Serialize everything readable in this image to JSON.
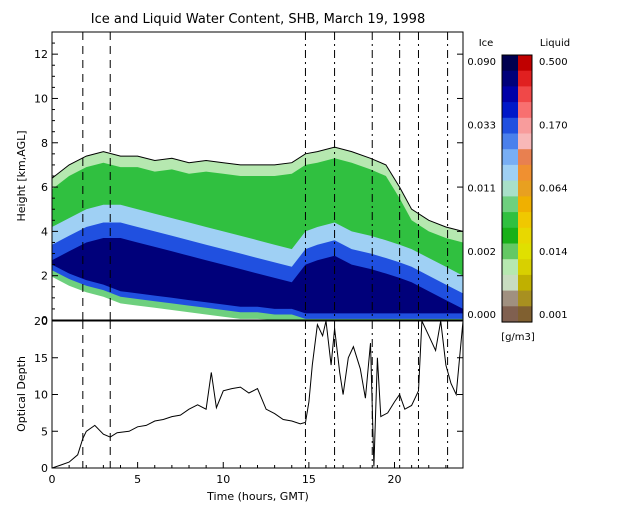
{
  "chart_data": [
    {
      "type": "heatmap",
      "title": "Ice and Liquid Water Content, SHB, March 19, 1998",
      "ylabel": "Height [km,AGL]",
      "xlabel": "",
      "ylim": [
        0,
        13
      ],
      "xlim": [
        0,
        24
      ],
      "y_ticks": [
        "0",
        "2",
        "4",
        "6",
        "8",
        "10",
        "12"
      ],
      "dashed_times": [
        1.8,
        3.4
      ],
      "dashdot_times": [
        14.8,
        16.5,
        18.7,
        20.3,
        21.4,
        23.1
      ],
      "profiles": {
        "times": [
          0,
          1,
          2,
          3,
          4,
          5,
          6,
          7,
          8,
          9,
          10,
          11,
          12,
          13,
          14,
          14.8,
          15.5,
          16.5,
          17.5,
          18.6,
          19.5,
          20.3,
          21,
          22,
          23,
          24
        ],
        "cloud_top_km": [
          6.4,
          7.0,
          7.4,
          7.6,
          7.4,
          7.4,
          7.2,
          7.3,
          7.1,
          7.2,
          7.1,
          7.0,
          7.0,
          7.0,
          7.1,
          7.5,
          7.6,
          7.8,
          7.6,
          7.3,
          7.0,
          6.0,
          5.0,
          4.5,
          4.2,
          4.0
        ],
        "cloud_base_km": [
          2.2,
          1.8,
          1.5,
          1.3,
          1.0,
          0.9,
          0.8,
          0.7,
          0.6,
          0.5,
          0.4,
          0.3,
          0.3,
          0.2,
          0.2,
          0.0,
          0.0,
          0.0,
          0.0,
          0.0,
          0.0,
          0.0,
          0.0,
          0.0,
          0.0,
          0.0
        ],
        "dense_top_km": [
          3.0,
          3.4,
          3.8,
          4.0,
          4.0,
          3.8,
          3.6,
          3.4,
          3.2,
          3.0,
          2.8,
          2.6,
          2.4,
          2.2,
          2.0,
          2.8,
          3.0,
          3.2,
          2.8,
          2.6,
          2.4,
          2.2,
          2.0,
          1.6,
          1.2,
          0.8
        ]
      },
      "colorbar": {
        "ice_label": "Ice",
        "liquid_label": "Liquid",
        "ice_ticks": [
          "0.090",
          "0.033",
          "0.011",
          "0.002",
          "0.000"
        ],
        "liquid_ticks": [
          "0.500",
          "0.170",
          "0.064",
          "0.014",
          "0.001"
        ],
        "units": "[g/m3]",
        "ice_colors": [
          "#000050",
          "#00007a",
          "#0000a8",
          "#0018c8",
          "#2050e0",
          "#4a80ec",
          "#78aef4",
          "#9fd0f4",
          "#a8e0c8",
          "#6ed07e",
          "#30c040",
          "#18b018",
          "#64c864",
          "#b6e8b0",
          "#c8dcc0",
          "#a09080",
          "#806050"
        ],
        "liquid_colors": [
          "#c00000",
          "#e02020",
          "#f04848",
          "#f87070",
          "#f89c9c",
          "#f8b8b8",
          "#e88050",
          "#f09030",
          "#e8a020",
          "#f0b000",
          "#f0c800",
          "#e8d800",
          "#e0e000",
          "#d8d000",
          "#c0b000",
          "#a89020",
          "#806030"
        ]
      }
    },
    {
      "type": "line",
      "xlabel": "Time (hours, GMT)",
      "ylabel": "Optical Depth",
      "xlim": [
        0,
        24
      ],
      "ylim": [
        0,
        20
      ],
      "x_ticks": [
        "0",
        "5",
        "10",
        "15",
        "20"
      ],
      "y_ticks": [
        "0",
        "5",
        "10",
        "15",
        "20"
      ],
      "x": [
        0,
        0.5,
        1,
        1.5,
        1.8,
        2,
        2.5,
        3,
        3.4,
        3.8,
        4.5,
        5,
        5.5,
        6,
        6.5,
        7,
        7.5,
        8,
        8.5,
        9,
        9.3,
        9.6,
        10,
        10.5,
        11,
        11.5,
        12,
        12.5,
        13,
        13.5,
        14,
        14.5,
        14.8,
        15,
        15.2,
        15.5,
        15.8,
        16,
        16.3,
        16.5,
        16.8,
        17,
        17.3,
        17.6,
        18,
        18.3,
        18.6,
        18.8,
        19,
        19.2,
        19.6,
        20,
        20.3,
        20.6,
        21,
        21.4,
        21.6,
        22,
        22.4,
        22.7,
        23,
        23.3,
        23.6,
        24
      ],
      "values": [
        0,
        0.4,
        0.8,
        1.8,
        4.0,
        5.0,
        5.8,
        4.6,
        4.2,
        4.8,
        5.0,
        5.6,
        5.8,
        6.4,
        6.6,
        7.0,
        7.2,
        8.0,
        8.6,
        8.0,
        13.0,
        8.2,
        10.5,
        10.8,
        11.0,
        10.2,
        10.8,
        8.0,
        7.4,
        6.6,
        6.4,
        6.0,
        6.2,
        9.0,
        14.0,
        19.5,
        18.0,
        20.0,
        14.0,
        19.0,
        13.0,
        10.0,
        15.0,
        16.5,
        13.5,
        9.5,
        17.0,
        0.2,
        15.0,
        7.0,
        7.5,
        9.0,
        10.0,
        8.0,
        8.5,
        10.5,
        20.0,
        18.0,
        16.0,
        20.0,
        14.0,
        11.5,
        10.0,
        20.0
      ],
      "dashed_times": [
        1.8,
        3.4
      ],
      "dashdot_times": [
        14.8,
        16.5,
        18.7,
        20.3,
        21.4,
        23.1
      ]
    }
  ]
}
